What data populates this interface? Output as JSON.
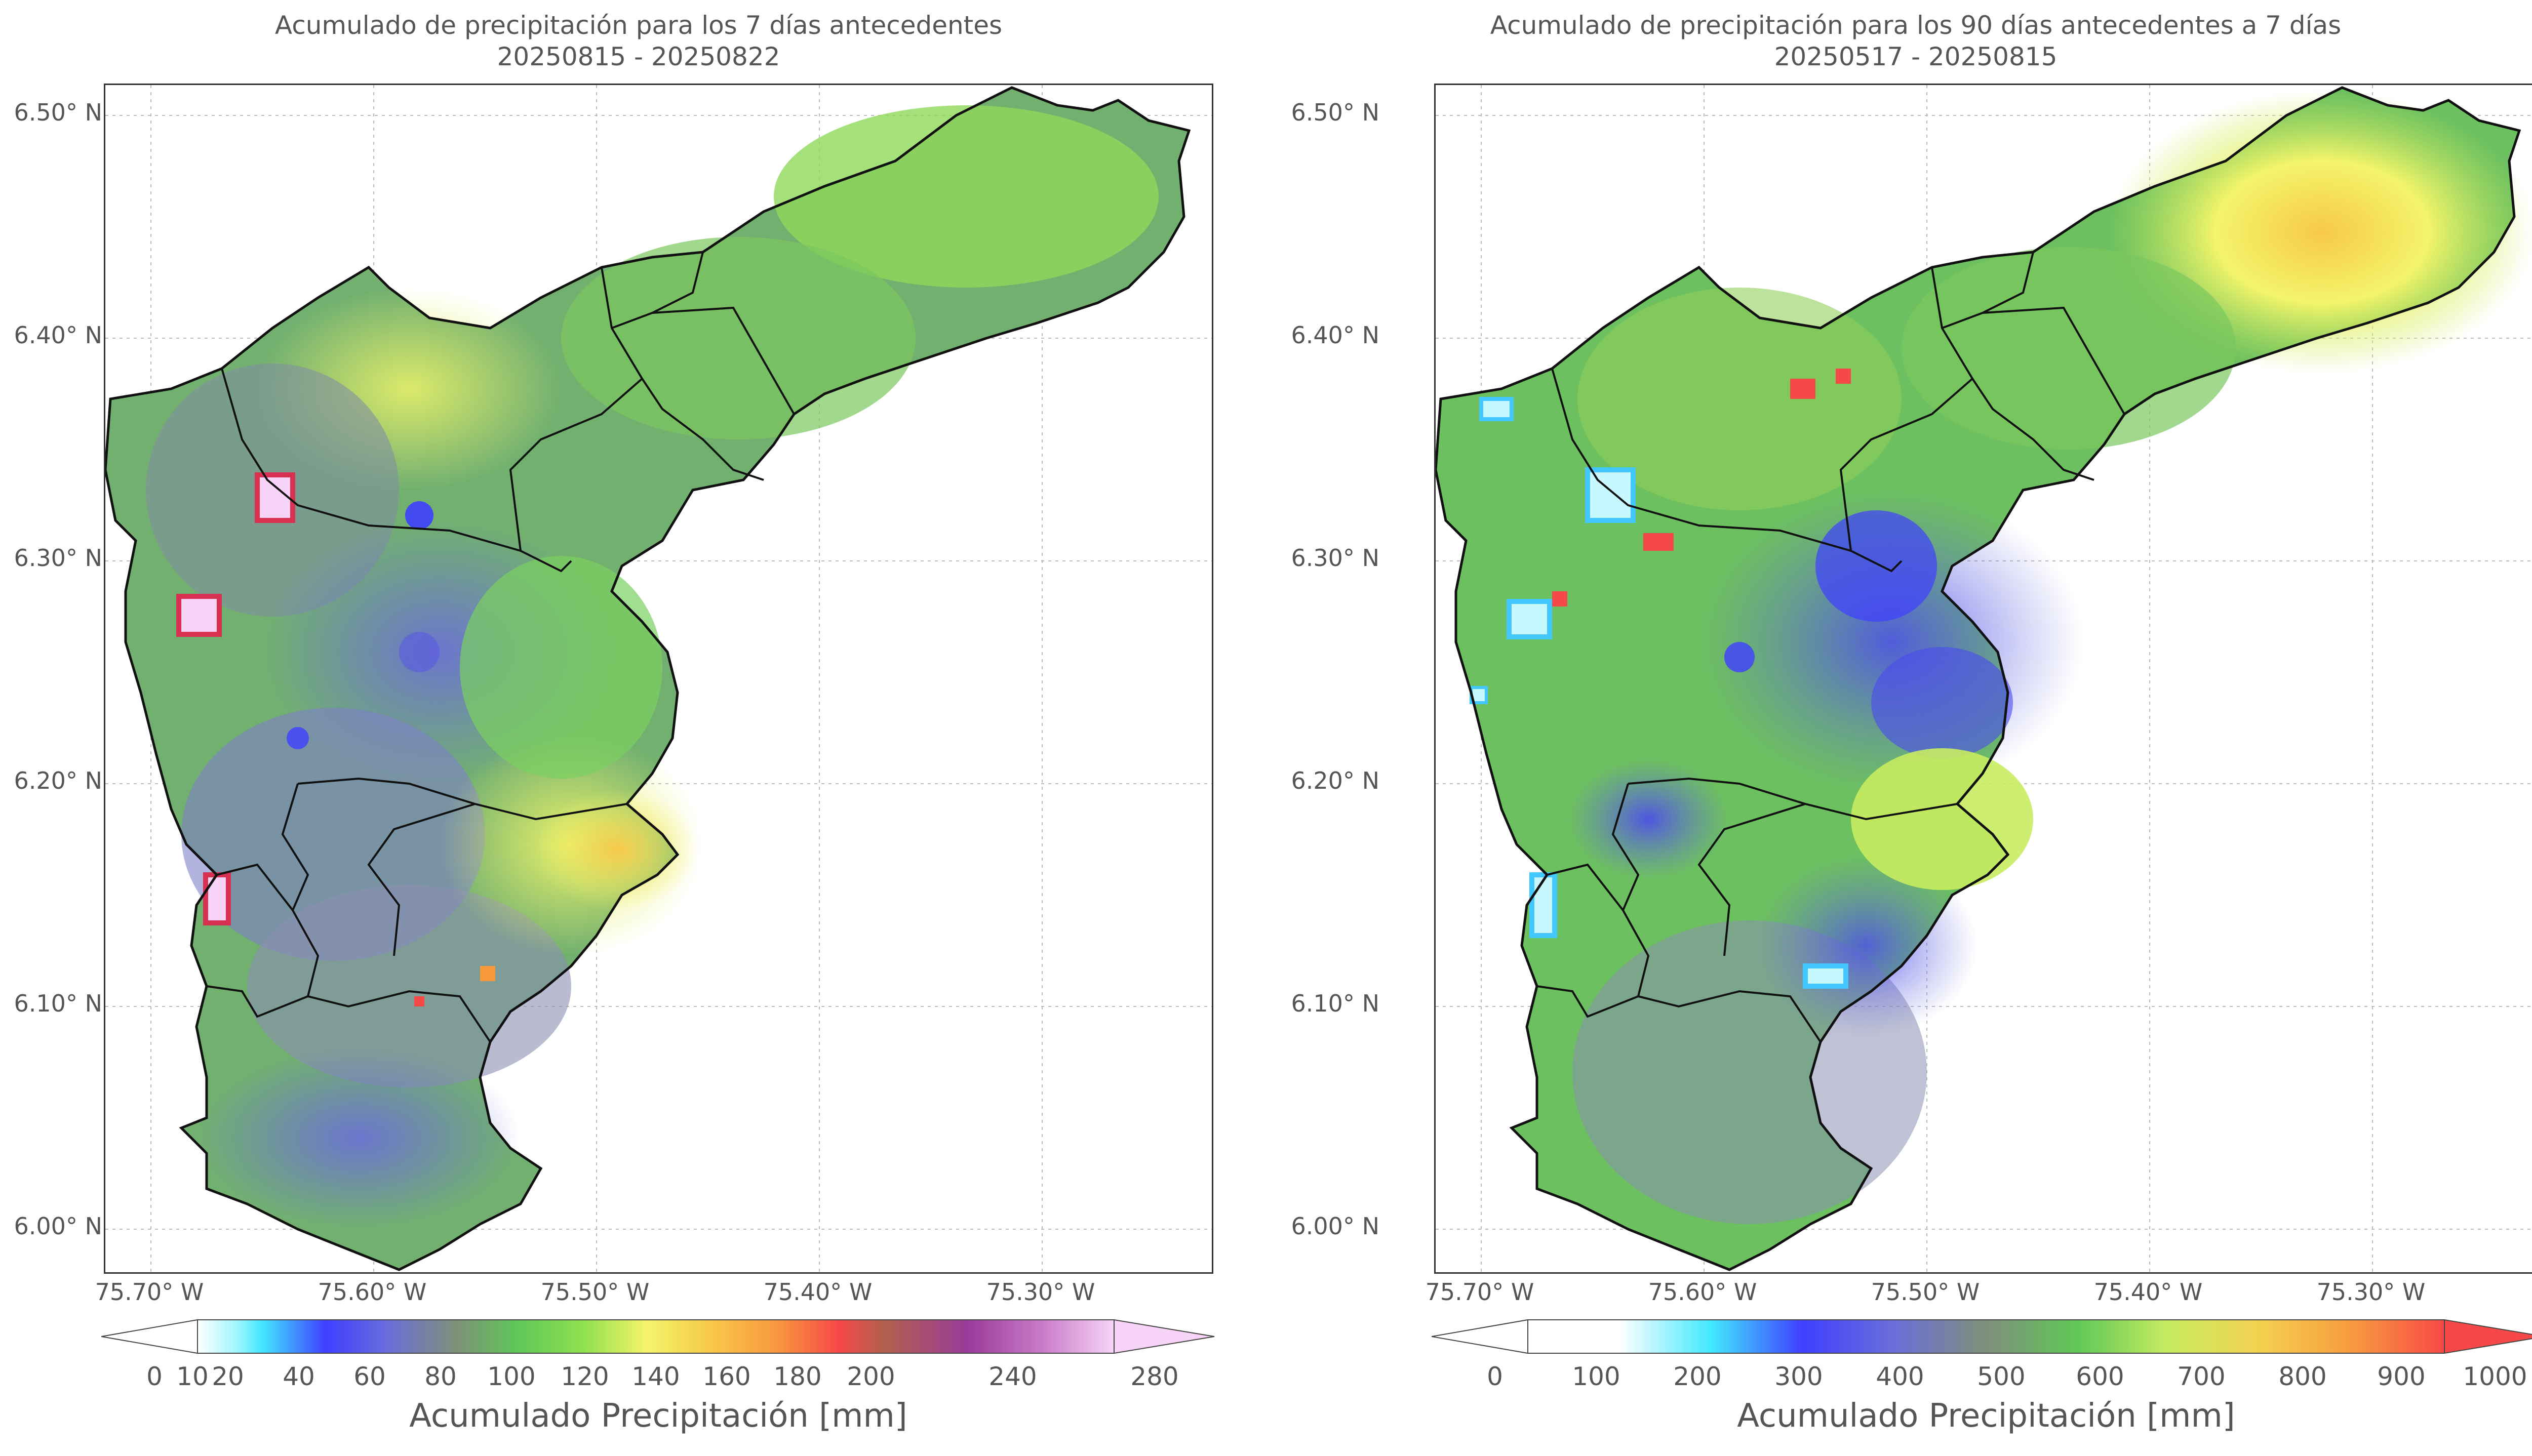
{
  "panels": [
    {
      "title_line1": "Acumulado de precipitación para los 7 días antecedentes",
      "title_line2": "20250815 - 20250822",
      "lat_ticks": [
        "6.50° N",
        "6.40° N",
        "6.30° N",
        "6.20° N",
        "6.10° N",
        "6.00° N"
      ],
      "lon_ticks": [
        "75.70° W",
        "75.60° W",
        "75.50° W",
        "75.40° W",
        "75.30° W"
      ],
      "colorbar_label": "Acumulado Precipitación [mm]",
      "colorbar_ticks": [
        "0",
        "10",
        "20",
        "40",
        "60",
        "80",
        "100",
        "120",
        "140",
        "160",
        "180",
        "200",
        "240",
        "280"
      ],
      "colorbar_colors": [
        "#ffffff",
        "#9cf5ff",
        "#42e8ff",
        "#3f3fff",
        "#6a6fd8",
        "#7f8f7a",
        "#5fc858",
        "#8ee050",
        "#f4f46a",
        "#f7c84a",
        "#f79a3e",
        "#f74848",
        "#b06050",
        "#9a3a9a",
        "#c87ac8",
        "#f7d4f7"
      ]
    },
    {
      "title_line1": "Acumulado de precipitación para los 90 días antecedentes a 7 días",
      "title_line2": "20250517 - 20250815",
      "lat_ticks": [
        "6.50° N",
        "6.40° N",
        "6.30° N",
        "6.20° N",
        "6.10° N",
        "6.00° N"
      ],
      "lon_ticks": [
        "75.70° W",
        "75.60° W",
        "75.50° W",
        "75.40° W",
        "75.30° W"
      ],
      "colorbar_label": "Acumulado Precipitación [mm]",
      "colorbar_ticks": [
        "0",
        "100",
        "200",
        "300",
        "400",
        "500",
        "600",
        "700",
        "800",
        "900",
        "1000"
      ],
      "colorbar_colors": [
        "#ffffff",
        "#ffffff",
        "#c8f8ff",
        "#3fe0ff",
        "#3f3fff",
        "#6a6fd8",
        "#7f8f7a",
        "#5fc858",
        "#a0e860",
        "#f4f46a",
        "#f7c84a",
        "#f79a3e",
        "#f74848"
      ]
    }
  ]
}
